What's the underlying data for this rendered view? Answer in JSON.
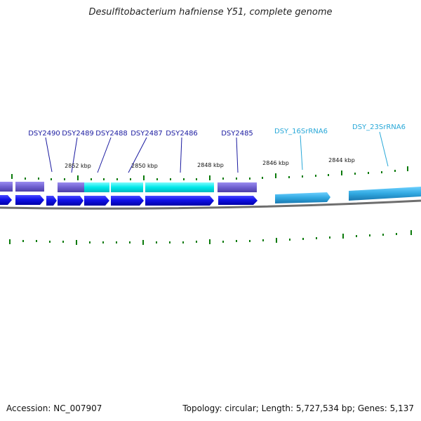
{
  "title": "Desulfitobacterium hafniense Y51, complete genome",
  "footer": {
    "accession": "Accession: NC_007907",
    "summary": "Topology: circular; Length: 5,727,534 bp; Genes: 5,137"
  },
  "colors": {
    "cds": "#1010e8",
    "gene": "#7060d0",
    "rrna_gene": "#00e0e0",
    "rrna": "#30a8e0",
    "backbone": "#777777",
    "tick": "#0a7a0a",
    "label_cds": "#1a1aa0",
    "label_rrna": "#28a8d8"
  },
  "gene_labels": [
    {
      "text": "DSY2490",
      "kind": "cds"
    },
    {
      "text": "DSY2489",
      "kind": "cds"
    },
    {
      "text": "DSY2488",
      "kind": "cds"
    },
    {
      "text": "DSY2487",
      "kind": "cds"
    },
    {
      "text": "DSY2486",
      "kind": "cds"
    },
    {
      "text": "DSY2485",
      "kind": "cds"
    },
    {
      "text": "DSY_16SrRNA6",
      "kind": "rrna"
    },
    {
      "text": "DSY_23SrRNA6",
      "kind": "rrna"
    }
  ],
  "scale_labels": [
    "2852 kbp",
    "2850 kbp",
    "2848 kbp",
    "2846 kbp",
    "2844 kbp"
  ]
}
